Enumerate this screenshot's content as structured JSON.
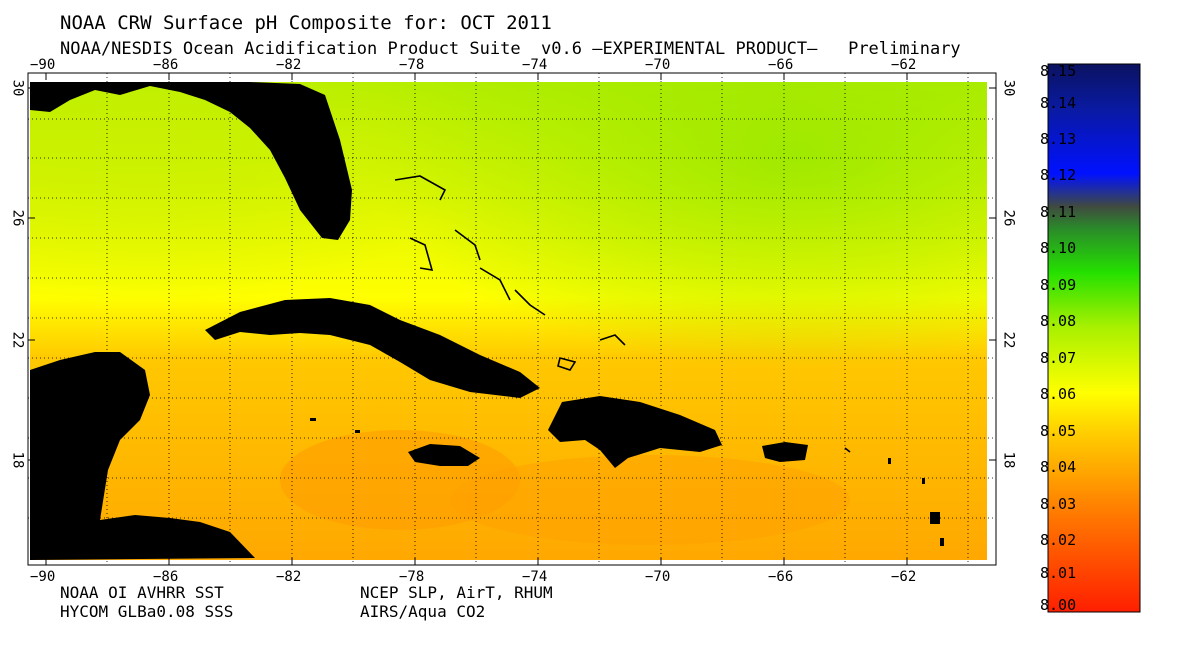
{
  "header": {
    "title": "NOAA CRW Surface pH Composite for: OCT 2011",
    "subtitle": "NOAA/NESDIS Ocean Acidification Product Suite  v0.6 –EXPERIMENTAL PRODUCT–   Preliminary"
  },
  "map": {
    "lon_ticks": [
      "−90",
      "−86",
      "−82",
      "−78",
      "−74",
      "−70",
      "−66",
      "−62"
    ],
    "lat_ticks": [
      "30",
      "26",
      "22",
      "18"
    ],
    "lon_range": [
      -90.5,
      -59
    ],
    "lat_range": [
      14.5,
      30.5
    ],
    "land_color": "#000000",
    "grid": "dotted"
  },
  "colorbar": {
    "labels": [
      "8.15",
      "8.14",
      "8.13",
      "8.12",
      "8.11",
      "8.10",
      "8.09",
      "8.08",
      "8.07",
      "8.06",
      "8.05",
      "8.04",
      "8.03",
      "8.02",
      "8.01",
      "8.00"
    ],
    "colors": {
      "low": "#ff1f00",
      "orange": "#ff9a00",
      "yellow": "#ffff00",
      "green": "#25e000",
      "dark": "#404a40",
      "blue": "#0011ff",
      "navy": "#0b1260"
    }
  },
  "sources": {
    "left": [
      "NOAA OI AVHRR SST",
      "HYCOM GLBa0.08 SSS"
    ],
    "right": [
      "NCEP SLP, AirT, RHUM",
      "AIRS/Aqua CO2"
    ]
  }
}
